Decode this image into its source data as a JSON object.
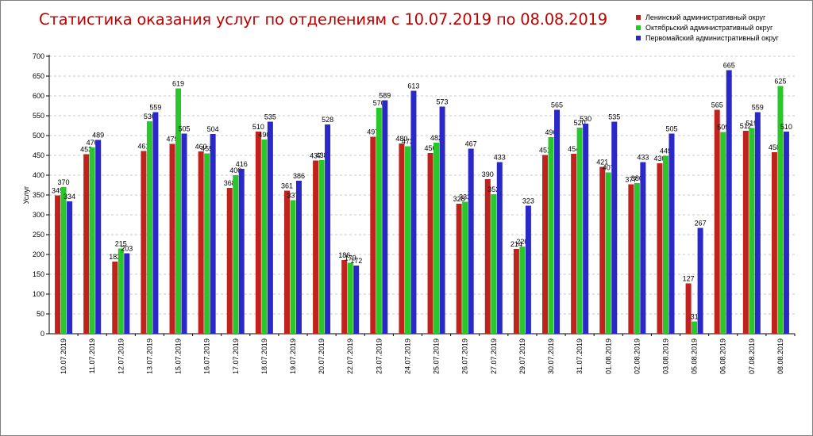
{
  "title": "Статистика оказания услуг по отделениям с 10.07.2019 по 08.08.2019",
  "chart_data": {
    "type": "bar",
    "title": "Статистика оказания услуг по отделениям с 10.07.2019 по 08.08.2019",
    "xlabel": "",
    "ylabel": "Услуг",
    "ylim": [
      0,
      700
    ],
    "yticks": [
      0,
      50,
      100,
      150,
      200,
      250,
      300,
      350,
      400,
      450,
      500,
      550,
      600,
      650,
      700
    ],
    "grid": "horizontal dashed",
    "legend_position": "top-right",
    "categories": [
      "10.07.2019",
      "11.07.2019",
      "12.07.2019",
      "13.07.2019",
      "15.07.2019",
      "16.07.2019",
      "17.07.2019",
      "18.07.2019",
      "19.07.2019",
      "20.07.2019",
      "22.07.2019",
      "23.07.2019",
      "24.07.2019",
      "25.07.2019",
      "26.07.2019",
      "27.07.2019",
      "29.07.2019",
      "30.07.2019",
      "31.07.2019",
      "01.08.2019",
      "02.08.2019",
      "03.08.2019",
      "05.08.2019",
      "06.08.2019",
      "07.08.2019",
      "08.08.2019"
    ],
    "series": [
      {
        "name": "Ленинский административный округ",
        "color": "#c0231d",
        "values": [
          349,
          453,
          182,
          461,
          479,
          460,
          368,
          510,
          361,
          437,
          186,
          497,
          480,
          456,
          328,
          390,
          214,
          451,
          454,
          421,
          377,
          430,
          127,
          565,
          512,
          458
        ]
      },
      {
        "name": "Октябрьский административный округ",
        "color": "#2ac72a",
        "values": [
          370,
          470,
          215,
          536,
          619,
          455,
          400,
          490,
          337,
          438,
          179,
          570,
          473,
          482,
          333,
          352,
          220,
          496,
          520,
          407,
          380,
          449,
          31,
          509,
          519,
          625
        ]
      },
      {
        "name": "Первомайский административный округ",
        "color": "#2a28c6",
        "values": [
          334,
          489,
          203,
          559,
          505,
          504,
          416,
          535,
          386,
          528,
          172,
          589,
          613,
          573,
          467,
          433,
          323,
          565,
          530,
          535,
          433,
          505,
          267,
          665,
          559,
          510
        ]
      }
    ]
  }
}
